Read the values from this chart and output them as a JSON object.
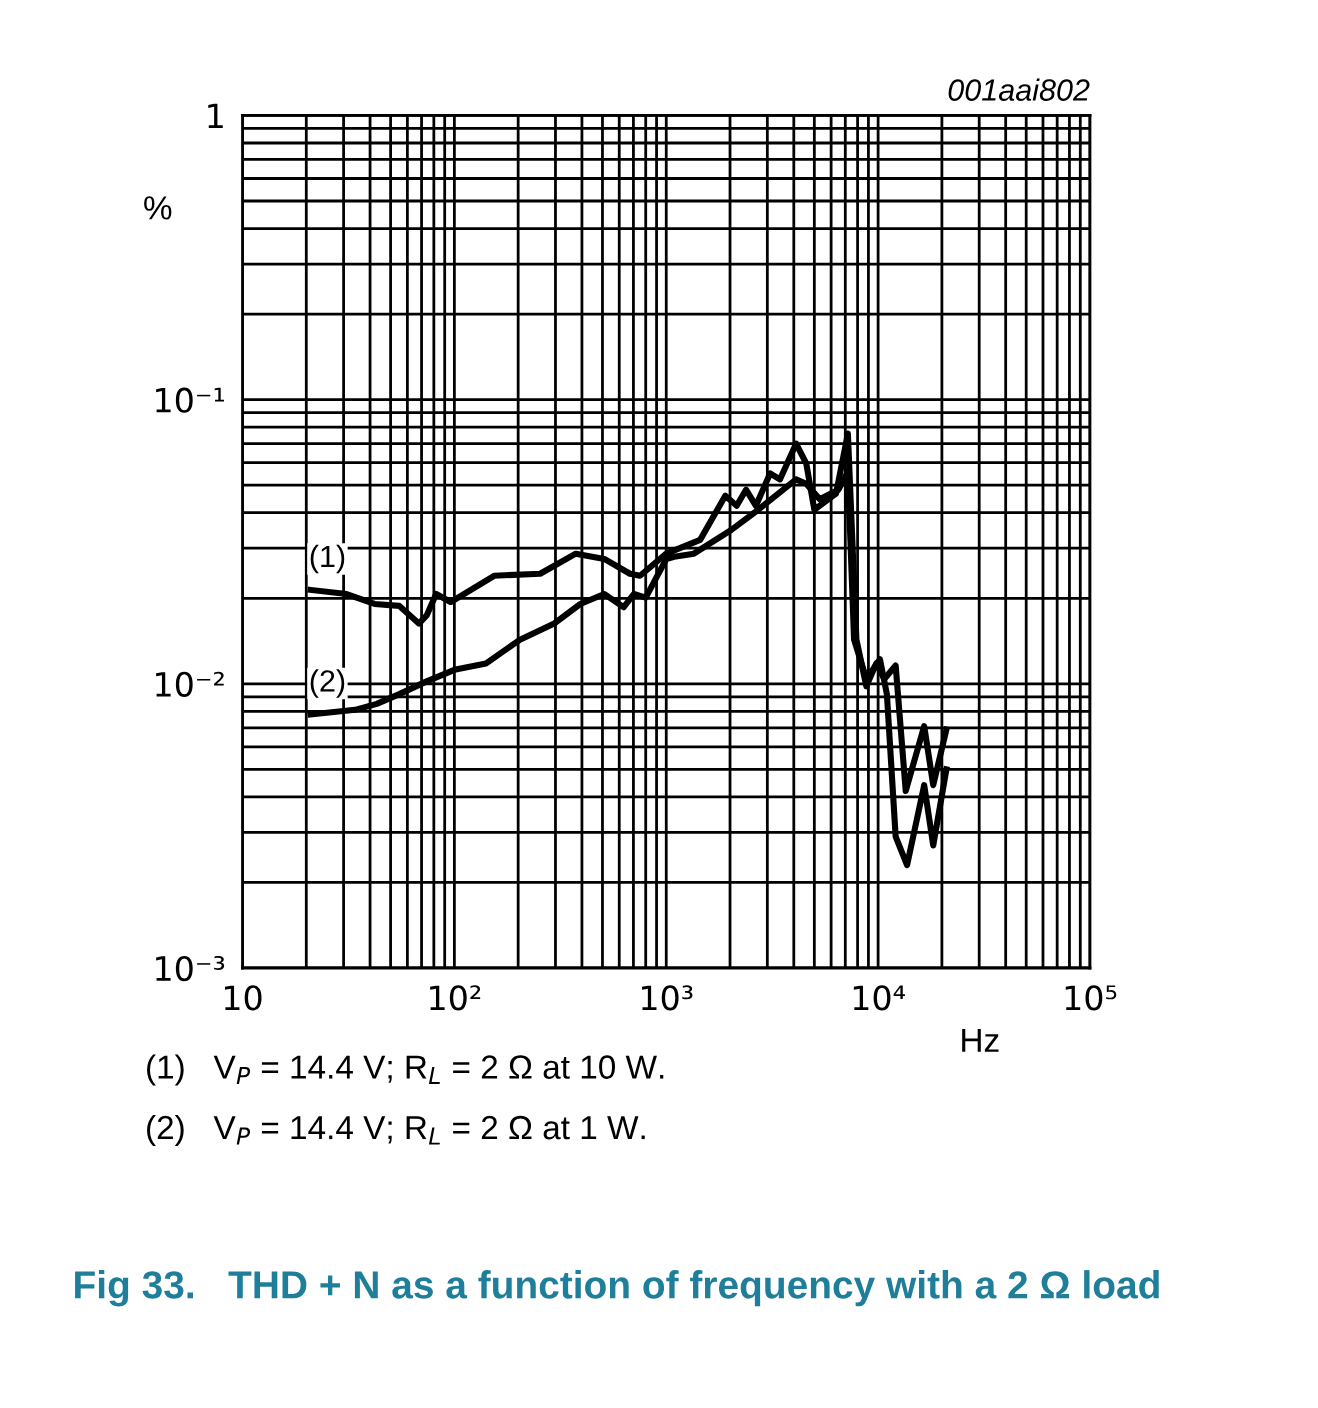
{
  "chart_data": {
    "type": "line",
    "title": "Fig 33.   THD + N as a function of frequency with a 2 Ω load",
    "subtitle": "001aai802",
    "xlabel": "Hz",
    "ylabel": "%",
    "log": "xy",
    "grid": true,
    "legend": false,
    "marker": "none",
    "line_style": "solid",
    "xlim": [
      10,
      100000
    ],
    "ylim": [
      0.001,
      1
    ],
    "xticks": [
      10,
      {
        "value": 100,
        "label": "10²"
      },
      {
        "value": 1000,
        "label": "10³"
      },
      {
        "value": 10000,
        "label": "10⁴"
      },
      {
        "value": 100000,
        "label": "10⁵"
      }
    ],
    "yticks": [
      {
        "value": 0.001,
        "label": "10⁻³"
      },
      {
        "value": 0.01,
        "label": "10⁻²"
      },
      {
        "value": 0.1,
        "label": "10⁻¹"
      },
      1
    ],
    "series": [
      {
        "name": "(1)",
        "color": "#000000",
        "x": [
          21,
          31,
          42,
          55,
          68,
          74,
          82,
          96,
          154,
          254,
          374,
          510,
          674,
          752,
          1000,
          1445,
          1900,
          2150,
          2380,
          2650,
          3090,
          3440,
          4100,
          4580,
          5000,
          6330,
          7200,
          7900,
          8800,
          9800,
          10700,
          12100,
          13500,
          16500,
          18200,
          21000
        ],
        "values": [
          0.0214,
          0.0207,
          0.0191,
          0.0188,
          0.0163,
          0.0174,
          0.0207,
          0.0194,
          0.024,
          0.0244,
          0.0287,
          0.0275,
          0.0244,
          0.024,
          0.0287,
          0.0321,
          0.0459,
          0.0423,
          0.0482,
          0.0423,
          0.055,
          0.0524,
          0.07,
          0.0596,
          0.041,
          0.0467,
          0.076,
          0.0143,
          0.0098,
          0.0118,
          0.0104,
          0.0116,
          0.0042,
          0.0071,
          0.0044,
          0.0069
        ]
      },
      {
        "name": "(2)",
        "color": "#000000",
        "x": [
          21,
          34,
          43,
          55,
          74,
          100,
          141,
          204,
          296,
          393,
          510,
          630,
          703,
          800,
          1000,
          1090,
          1350,
          2030,
          2650,
          4100,
          4580,
          5300,
          6500,
          7200,
          7700,
          8800,
          10200,
          11000,
          12100,
          13700,
          16500,
          18200,
          21000
        ],
        "values": [
          0.0078,
          0.0081,
          0.0085,
          0.0092,
          0.0102,
          0.0112,
          0.0118,
          0.0143,
          0.0163,
          0.0191,
          0.0207,
          0.0186,
          0.0207,
          0.0201,
          0.0275,
          0.028,
          0.0287,
          0.0348,
          0.0404,
          0.0524,
          0.0506,
          0.0446,
          0.0482,
          0.0558,
          0.0143,
          0.0104,
          0.0122,
          0.0092,
          0.0029,
          0.0023,
          0.0044,
          0.0027,
          0.005
        ]
      }
    ],
    "annotations": [
      "(1)   V$_{P}$ = 14.4 V; R$_{L}$ = 2 Ω at 10 W.",
      "(2)   V$_{P}$ = 14.4 V; R$_{L}$ = 2 Ω at 1 W."
    ]
  }
}
